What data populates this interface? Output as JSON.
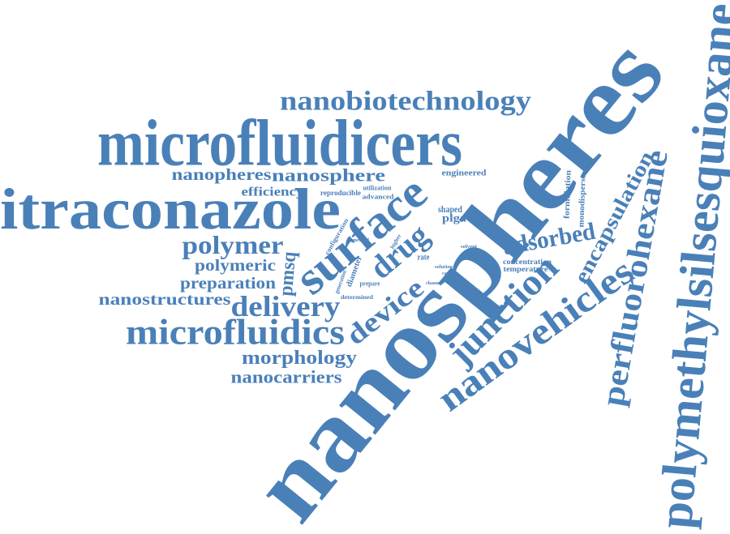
{
  "words": [
    "nanospheres",
    "microfluidicers",
    "itraconazole",
    "nanobiotechnology",
    "polymethylsilsesquioxane",
    "perfluorohexane",
    "nanovehicles",
    "junction",
    "encapsulation",
    "adsorbed",
    "surface",
    "drug",
    "device",
    "delivery",
    "microfluidics",
    "polymer",
    "polymeric",
    "preparation",
    "nanostructures",
    "morphology",
    "nanocarriers",
    "nanopheres",
    "nanosphere",
    "efficiency",
    "pmsq",
    "reproducible",
    "utilization",
    "advanced",
    "engineered",
    "shaped",
    "plga",
    "formulation",
    "monodisperse",
    "concentration",
    "temperature",
    "rate",
    "configuration",
    "diameter",
    "prepare",
    "determined",
    "generation",
    "method",
    "higher",
    "solution",
    "capsule",
    "channel",
    "solvent"
  ]
}
